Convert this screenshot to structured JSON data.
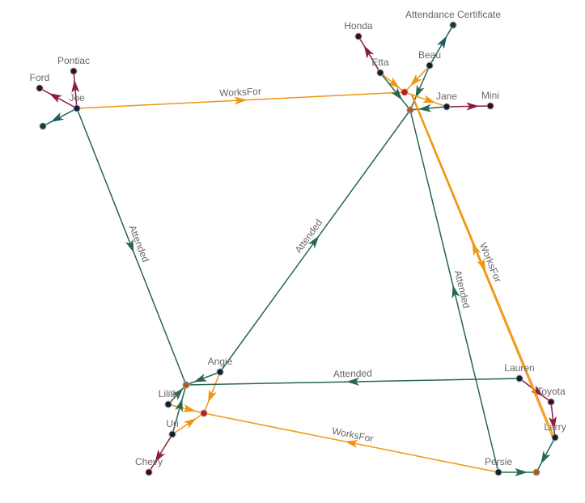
{
  "colors": {
    "attended": "#27664f",
    "works_for": "#f0960e",
    "owns": "#8b1c3e",
    "certificate": "#1d5a66",
    "person_node": "#12202e",
    "car_node": "#3d0a2a",
    "company_node": "#cc1515",
    "school_node": "#b15a1c",
    "certificate_node": "#1b3a2c",
    "label": "#666666"
  },
  "nodes": [
    {
      "id": "joe",
      "label": "Joe",
      "kind": "person"
    },
    {
      "id": "ford",
      "label": "Ford",
      "kind": "car"
    },
    {
      "id": "pontiac",
      "label": "Pontiac",
      "kind": "car"
    },
    {
      "id": "joecert",
      "label": "",
      "kind": "certificate"
    },
    {
      "id": "honda",
      "label": "Honda",
      "kind": "car"
    },
    {
      "id": "etta",
      "label": "Etta",
      "kind": "person"
    },
    {
      "id": "cert",
      "label": "Attendance Certificate",
      "kind": "certificate"
    },
    {
      "id": "beau",
      "label": "Beau",
      "kind": "person"
    },
    {
      "id": "company1",
      "label": "",
      "kind": "company"
    },
    {
      "id": "school1",
      "label": "",
      "kind": "school"
    },
    {
      "id": "jane",
      "label": "Jane",
      "kind": "person"
    },
    {
      "id": "mini",
      "label": "Mini",
      "kind": "car"
    },
    {
      "id": "angie",
      "label": "Angie",
      "kind": "person"
    },
    {
      "id": "school2",
      "label": "",
      "kind": "school"
    },
    {
      "id": "lilith",
      "label": "Lilith",
      "kind": "person"
    },
    {
      "id": "company2",
      "label": "",
      "kind": "company"
    },
    {
      "id": "uri",
      "label": "Uri",
      "kind": "person"
    },
    {
      "id": "chevy",
      "label": "Chevy",
      "kind": "car"
    },
    {
      "id": "lauren",
      "label": "Lauren",
      "kind": "person"
    },
    {
      "id": "toyota",
      "label": "Toyota",
      "kind": "car"
    },
    {
      "id": "larry",
      "label": "Larry",
      "kind": "person"
    },
    {
      "id": "persie",
      "label": "Persie",
      "kind": "person"
    },
    {
      "id": "school3",
      "label": "",
      "kind": "school"
    }
  ],
  "edges": [
    {
      "source": "joe",
      "target": "ford",
      "kind": "owns",
      "label": ""
    },
    {
      "source": "joe",
      "target": "pontiac",
      "kind": "owns",
      "label": ""
    },
    {
      "source": "joe",
      "target": "joecert",
      "kind": "certificate",
      "label": ""
    },
    {
      "source": "joe",
      "target": "company1",
      "kind": "works_for",
      "label": "WorksFor"
    },
    {
      "source": "joe",
      "target": "school2",
      "kind": "attended",
      "label": "Attended"
    },
    {
      "source": "etta",
      "target": "honda",
      "kind": "owns",
      "label": ""
    },
    {
      "source": "etta",
      "target": "company1",
      "kind": "works_for",
      "label": ""
    },
    {
      "source": "etta",
      "target": "school1",
      "kind": "attended",
      "label": ""
    },
    {
      "source": "beau",
      "target": "cert",
      "kind": "certificate",
      "label": ""
    },
    {
      "source": "beau",
      "target": "company1",
      "kind": "works_for",
      "label": ""
    },
    {
      "source": "beau",
      "target": "school1",
      "kind": "attended",
      "label": ""
    },
    {
      "source": "jane",
      "target": "mini",
      "kind": "owns",
      "label": ""
    },
    {
      "source": "jane",
      "target": "school1",
      "kind": "attended",
      "label": ""
    },
    {
      "source": "company1",
      "target": "jane",
      "kind": "works_for",
      "label": ""
    },
    {
      "source": "angie",
      "target": "school1",
      "kind": "attended",
      "label": "Attended"
    },
    {
      "source": "angie",
      "target": "school2",
      "kind": "attended",
      "label": ""
    },
    {
      "source": "angie",
      "target": "company2",
      "kind": "works_for",
      "label": ""
    },
    {
      "source": "lilith",
      "target": "school2",
      "kind": "attended",
      "label": ""
    },
    {
      "source": "lilith",
      "target": "company2",
      "kind": "works_for",
      "label": ""
    },
    {
      "source": "uri",
      "target": "chevy",
      "kind": "owns",
      "label": ""
    },
    {
      "source": "uri",
      "target": "school2",
      "kind": "attended",
      "label": ""
    },
    {
      "source": "uri",
      "target": "company2",
      "kind": "works_for",
      "label": ""
    },
    {
      "source": "lauren",
      "target": "school2",
      "kind": "attended",
      "label": "Attended"
    },
    {
      "source": "lauren",
      "target": "toyota",
      "kind": "owns",
      "label": ""
    },
    {
      "source": "toyota",
      "target": "larry",
      "kind": "owns",
      "label": ""
    },
    {
      "source": "larry",
      "target": "school3",
      "kind": "attended",
      "label": ""
    },
    {
      "source": "larry",
      "target": "company1",
      "kind": "works_for",
      "label": ""
    },
    {
      "source": "company1",
      "target": "larry",
      "kind": "works_for",
      "label": "WorksFor"
    },
    {
      "source": "persie",
      "target": "school1",
      "kind": "attended",
      "label": "Attended"
    },
    {
      "source": "persie",
      "target": "school3",
      "kind": "attended",
      "label": ""
    },
    {
      "source": "persie",
      "target": "company2",
      "kind": "works_for",
      "label": "WorksFor"
    }
  ]
}
